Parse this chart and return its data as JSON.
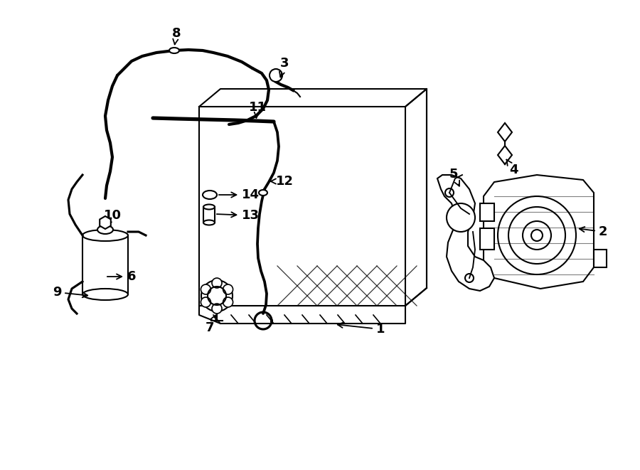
{
  "bg_color": "#ffffff",
  "line_color": "#000000",
  "lw": 1.5,
  "figsize": [
    9.0,
    6.61
  ],
  "dpi": 100,
  "label_fontsize": 13
}
